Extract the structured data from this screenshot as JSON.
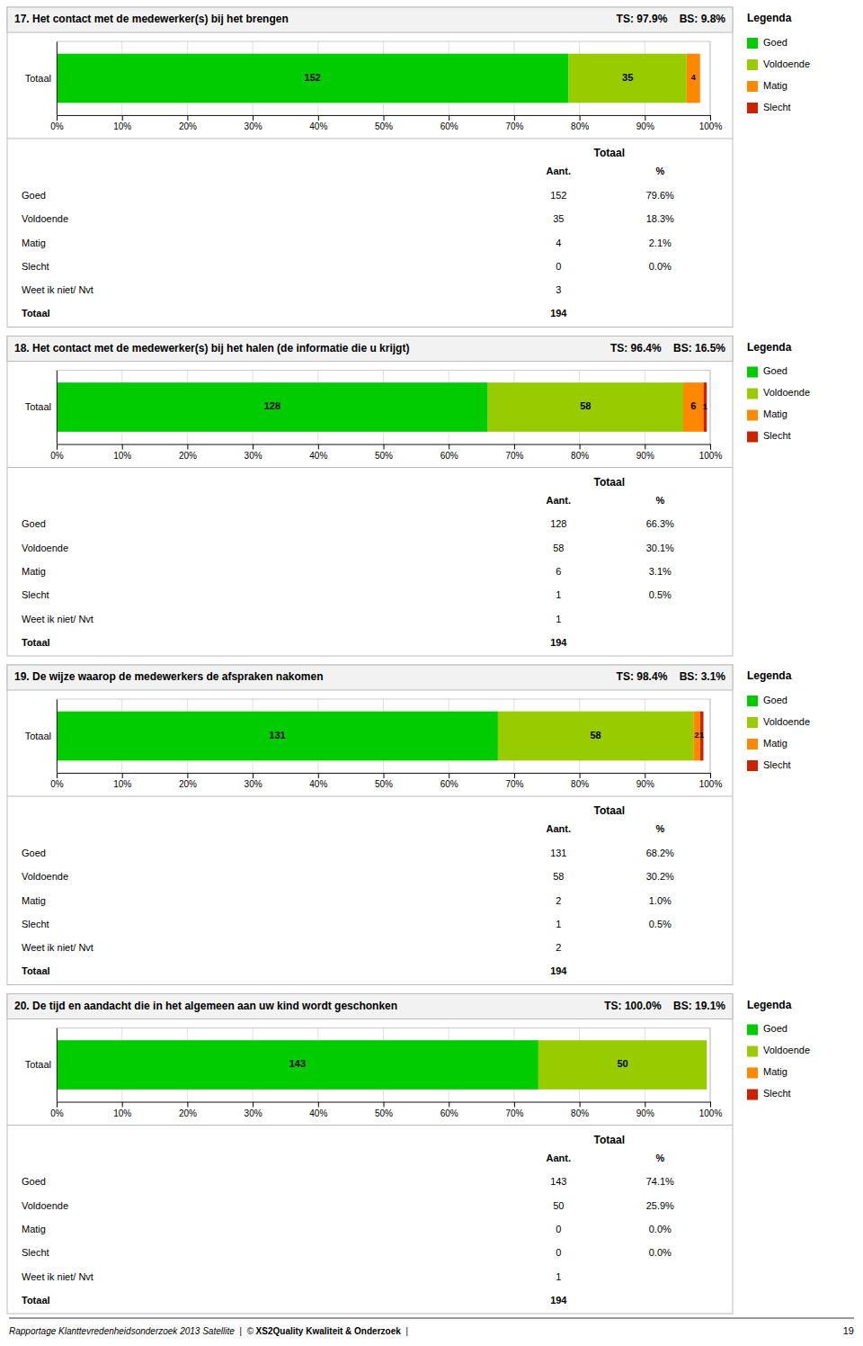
{
  "chart_data": [
    {
      "type": "bar",
      "orientation": "horizontal",
      "stacked": true,
      "grid": true,
      "legend": "right",
      "title": "17. Het contact met de medewerker(s) bij het brengen",
      "subtitle": "TS: 97.9%    BS: 9.8%",
      "categories": [
        "Totaal"
      ],
      "series": [
        {
          "name": "Goed",
          "color": "#00cc00",
          "values": [
            78.35051546391753
          ],
          "counts": [
            152
          ]
        },
        {
          "name": "Voldoende",
          "color": "#99cc00",
          "values": [
            18.04123711340206
          ],
          "counts": [
            35
          ]
        },
        {
          "name": "Matig",
          "color": "#ff8800",
          "values": [
            2.0618556701030926
          ],
          "counts": [
            4
          ]
        },
        {
          "name": "Slecht",
          "color": "#cc2200",
          "values": [
            0
          ],
          "counts": [
            0
          ]
        }
      ],
      "xlim": [
        0,
        100
      ],
      "xticks": [
        {
          "value": 0,
          "label": "0%"
        },
        {
          "value": 10,
          "label": "10%"
        },
        {
          "value": 20,
          "label": "20%"
        },
        {
          "value": 30,
          "label": "30%"
        },
        {
          "value": 40,
          "label": "40%"
        },
        {
          "value": 50,
          "label": "50%"
        },
        {
          "value": 60,
          "label": "60%"
        },
        {
          "value": 70,
          "label": "70%"
        },
        {
          "value": 80,
          "label": "80%"
        },
        {
          "value": 90,
          "label": "90%"
        },
        {
          "value": 100,
          "label": "100%"
        }
      ],
      "table": {
        "header": "Totaal",
        "columns": [
          "Aant.",
          "%"
        ],
        "rows": [
          {
            "label": "Goed",
            "count": 152,
            "pct": "79.6%"
          },
          {
            "label": "Voldoende",
            "count": 35,
            "pct": "18.3%"
          },
          {
            "label": "Matig",
            "count": 4,
            "pct": "2.1%"
          },
          {
            "label": "Slecht",
            "count": 0,
            "pct": "0.0%"
          },
          {
            "label": "Weet ik niet/ Nvt",
            "count": 3
          },
          {
            "label": "Totaal",
            "count": 194
          }
        ]
      }
    },
    {
      "type": "bar",
      "orientation": "horizontal",
      "stacked": true,
      "grid": true,
      "legend": "right",
      "title": "18. Het contact met de medewerker(s) bij het halen (de informatie die u krijgt)",
      "subtitle": "TS: 96.4%    BS: 16.5%",
      "categories": [
        "Totaal"
      ],
      "series": [
        {
          "name": "Goed",
          "color": "#00cc00",
          "values": [
            65.97938144329898
          ],
          "counts": [
            128
          ]
        },
        {
          "name": "Voldoende",
          "color": "#99cc00",
          "values": [
            29.896907216494846
          ],
          "counts": [
            58
          ]
        },
        {
          "name": "Matig",
          "color": "#ff8800",
          "values": [
            3.0927835051546393
          ],
          "counts": [
            6
          ]
        },
        {
          "name": "Slecht",
          "color": "#cc2200",
          "values": [
            0.5154639175257731
          ],
          "counts": [
            1
          ]
        }
      ],
      "xlim": [
        0,
        100
      ],
      "xticks": [
        {
          "value": 0,
          "label": "0%"
        },
        {
          "value": 10,
          "label": "10%"
        },
        {
          "value": 20,
          "label": "20%"
        },
        {
          "value": 30,
          "label": "30%"
        },
        {
          "value": 40,
          "label": "40%"
        },
        {
          "value": 50,
          "label": "50%"
        },
        {
          "value": 60,
          "label": "60%"
        },
        {
          "value": 70,
          "label": "70%"
        },
        {
          "value": 80,
          "label": "80%"
        },
        {
          "value": 90,
          "label": "90%"
        },
        {
          "value": 100,
          "label": "100%"
        }
      ],
      "table": {
        "header": "Totaal",
        "columns": [
          "Aant.",
          "%"
        ],
        "rows": [
          {
            "label": "Goed",
            "count": 128,
            "pct": "66.3%"
          },
          {
            "label": "Voldoende",
            "count": 58,
            "pct": "30.1%"
          },
          {
            "label": "Matig",
            "count": 6,
            "pct": "3.1%"
          },
          {
            "label": "Slecht",
            "count": 1,
            "pct": "0.5%"
          },
          {
            "label": "Weet ik niet/ Nvt",
            "count": 1
          },
          {
            "label": "Totaal",
            "count": 194
          }
        ]
      }
    },
    {
      "type": "bar",
      "orientation": "horizontal",
      "stacked": true,
      "grid": true,
      "legend": "right",
      "title": "19. De wijze waarop de medewerkers de afspraken nakomen",
      "subtitle": "TS: 98.4%    BS: 3.1%",
      "categories": [
        "Totaal"
      ],
      "series": [
        {
          "name": "Goed",
          "color": "#00cc00",
          "values": [
            67.5257731958763
          ],
          "counts": [
            131
          ]
        },
        {
          "name": "Voldoende",
          "color": "#99cc00",
          "values": [
            29.896907216494846
          ],
          "counts": [
            58
          ]
        },
        {
          "name": "Matig",
          "color": "#ff8800",
          "values": [
            1.0309278350515463
          ],
          "counts": [
            2
          ]
        },
        {
          "name": "Slecht",
          "color": "#cc2200",
          "values": [
            0.5154639175257731
          ],
          "counts": [
            1
          ]
        }
      ],
      "xlim": [
        0,
        100
      ],
      "xticks": [
        {
          "value": 0,
          "label": "0%"
        },
        {
          "value": 10,
          "label": "10%"
        },
        {
          "value": 20,
          "label": "20%"
        },
        {
          "value": 30,
          "label": "30%"
        },
        {
          "value": 40,
          "label": "40%"
        },
        {
          "value": 50,
          "label": "50%"
        },
        {
          "value": 60,
          "label": "60%"
        },
        {
          "value": 70,
          "label": "70%"
        },
        {
          "value": 80,
          "label": "80%"
        },
        {
          "value": 90,
          "label": "90%"
        },
        {
          "value": 100,
          "label": "100%"
        }
      ],
      "table": {
        "header": "Totaal",
        "columns": [
          "Aant.",
          "%"
        ],
        "rows": [
          {
            "label": "Goed",
            "count": 131,
            "pct": "68.2%"
          },
          {
            "label": "Voldoende",
            "count": 58,
            "pct": "30.2%"
          },
          {
            "label": "Matig",
            "count": 2,
            "pct": "1.0%"
          },
          {
            "label": "Slecht",
            "count": 1,
            "pct": "0.5%"
          },
          {
            "label": "Weet ik niet/ Nvt",
            "count": 2
          },
          {
            "label": "Totaal",
            "count": 194
          }
        ]
      }
    },
    {
      "type": "bar",
      "orientation": "horizontal",
      "stacked": true,
      "grid": true,
      "legend": "right",
      "title": "20. De tijd en aandacht die in het algemeen aan uw kind wordt geschonken",
      "subtitle": "TS: 100.0%    BS: 19.1%",
      "categories": [
        "Totaal"
      ],
      "series": [
        {
          "name": "Goed",
          "color": "#00cc00",
          "values": [
            73.71134020618557
          ],
          "counts": [
            143
          ]
        },
        {
          "name": "Voldoende",
          "color": "#99cc00",
          "values": [
            25.773195876288657
          ],
          "counts": [
            50
          ]
        },
        {
          "name": "Matig",
          "color": "#ff8800",
          "values": [
            0
          ],
          "counts": [
            0
          ]
        },
        {
          "name": "Slecht",
          "color": "#cc2200",
          "values": [
            0
          ],
          "counts": [
            0
          ]
        }
      ],
      "xlim": [
        0,
        100
      ],
      "xticks": [
        {
          "value": 0,
          "label": "0%"
        },
        {
          "value": 10,
          "label": "10%"
        },
        {
          "value": 20,
          "label": "20%"
        },
        {
          "value": 30,
          "label": "30%"
        },
        {
          "value": 40,
          "label": "40%"
        },
        {
          "value": 50,
          "label": "50%"
        },
        {
          "value": 60,
          "label": "60%"
        },
        {
          "value": 70,
          "label": "70%"
        },
        {
          "value": 80,
          "label": "80%"
        },
        {
          "value": 90,
          "label": "90%"
        },
        {
          "value": 100,
          "label": "100%"
        }
      ],
      "table": {
        "header": "Totaal",
        "columns": [
          "Aant.",
          "%"
        ],
        "rows": [
          {
            "label": "Goed",
            "count": 143,
            "pct": "74.1%"
          },
          {
            "label": "Voldoende",
            "count": 50,
            "pct": "25.9%"
          },
          {
            "label": "Matig",
            "count": 0,
            "pct": "0.0%"
          },
          {
            "label": "Slecht",
            "count": 0,
            "pct": "0.0%"
          },
          {
            "label": "Weet ik niet/ Nvt",
            "count": 1
          },
          {
            "label": "Totaal",
            "count": 194
          }
        ]
      }
    }
  ],
  "legend_title": "Legenda",
  "footer": {
    "texts": [
      "Rapportage Klanttevredenheidsonderzoek 2013 Satellite  |  ",
      "© ",
      "XS2Quality Kwaliteit & Onderzoek",
      "  |"
    ],
    "page": 19
  }
}
